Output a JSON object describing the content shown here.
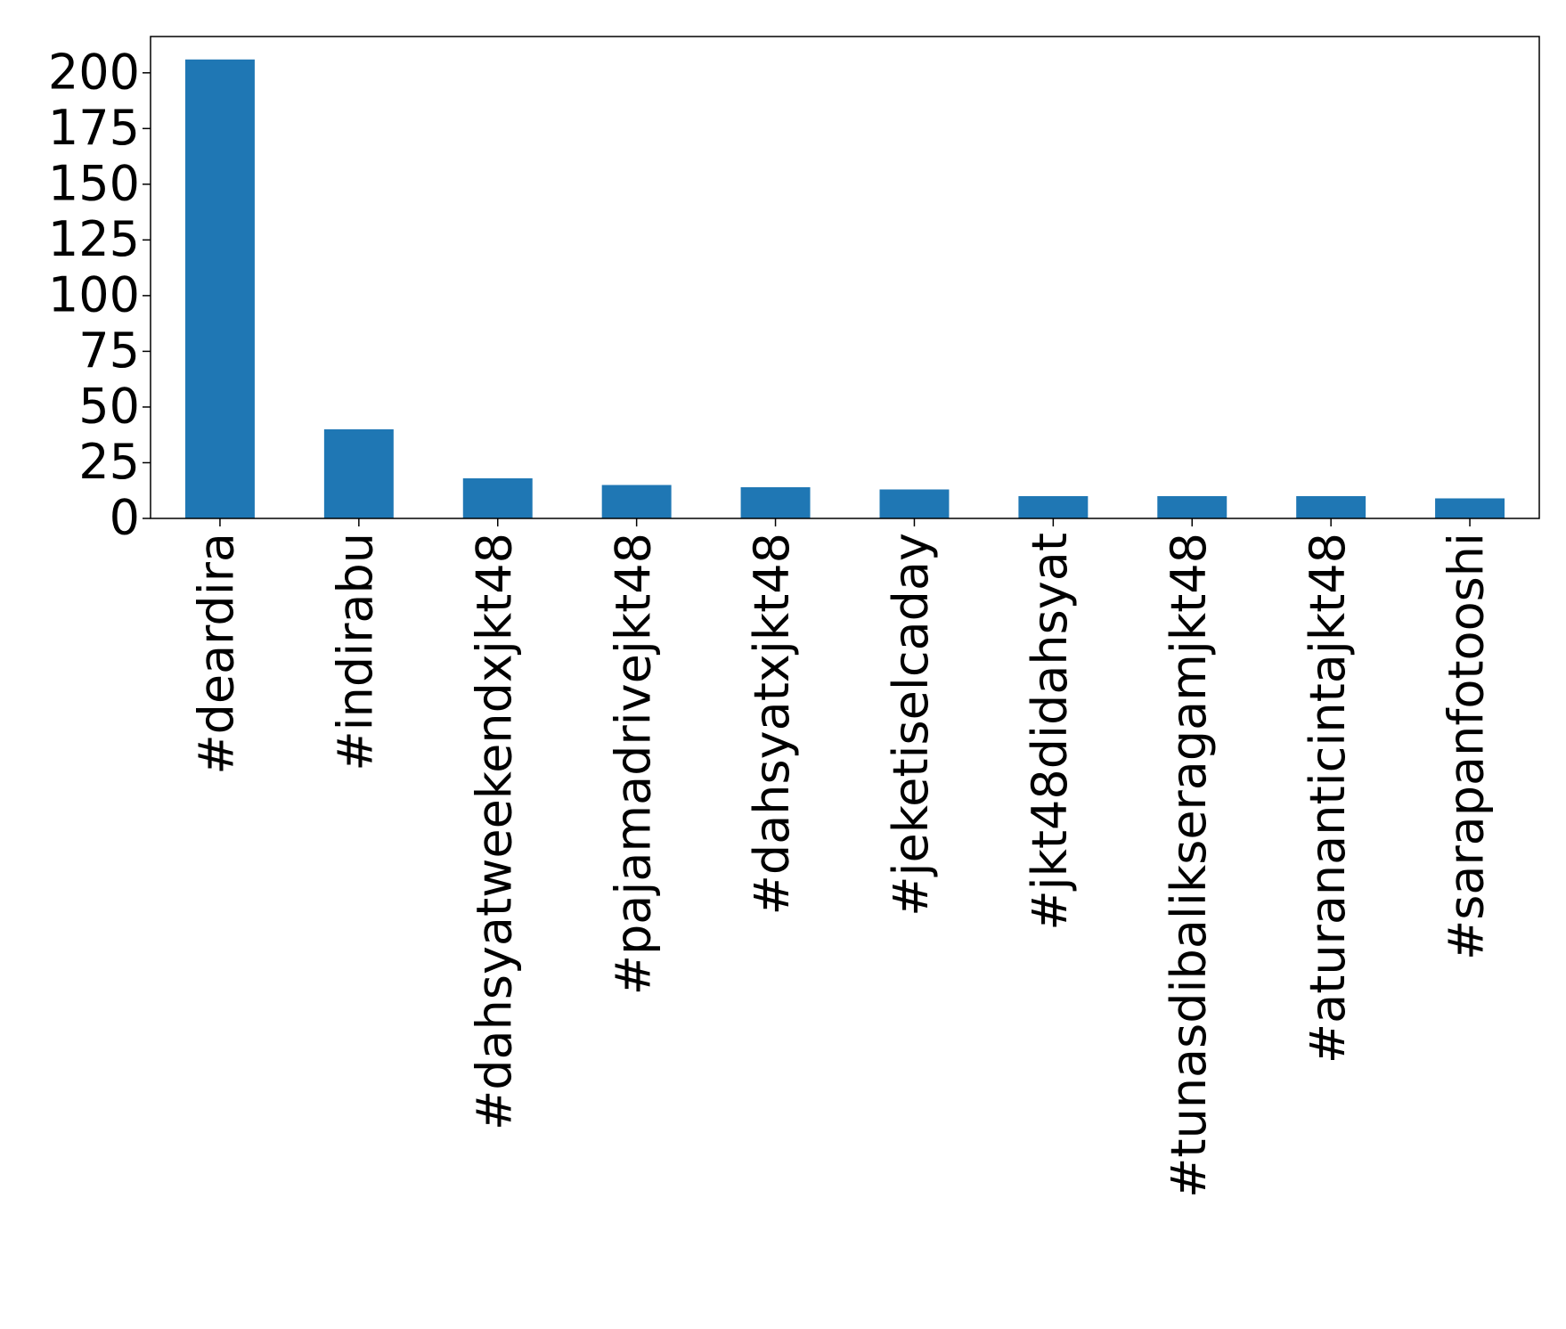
{
  "chart_data": {
    "type": "bar",
    "categories": [
      "#deardira",
      "#indirabu",
      "#dahsyatweekendxjkt48",
      "#pajamadrivejkt48",
      "#dahsyatxjkt48",
      "#jeketiselcaday",
      "#jkt48didahsyat",
      "#tunasdibalikseragamjkt48",
      "#aturananticintajkt48",
      "#sarapanfotooshi"
    ],
    "values": [
      206,
      40,
      18,
      15,
      14,
      13,
      10,
      10,
      10,
      9
    ],
    "color": "#1f77b4",
    "ylim": [
      0,
      216.3
    ],
    "yticks": [
      0,
      25,
      50,
      75,
      100,
      125,
      150,
      175,
      200
    ],
    "grid": false
  }
}
